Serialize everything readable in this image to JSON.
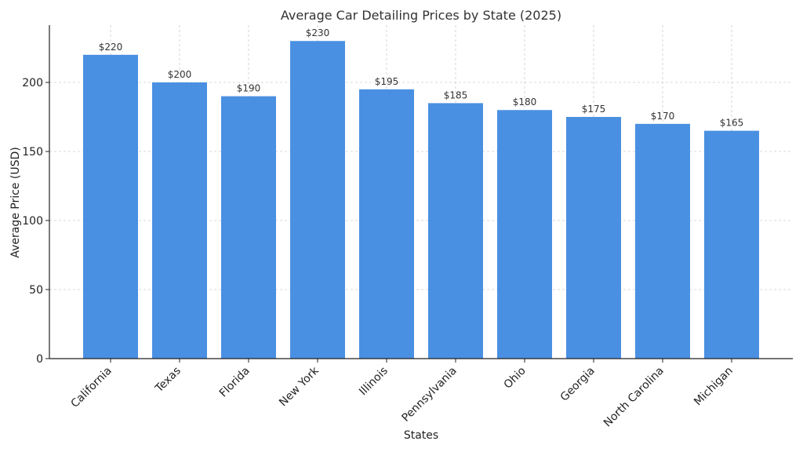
{
  "chart_data": {
    "type": "bar",
    "title": "Average Car Detailing Prices by State (2025)",
    "xlabel": "States",
    "ylabel": "Average Price (USD)",
    "categories": [
      "California",
      "Texas",
      "Florida",
      "New York",
      "Illinois",
      "Pennsylvania",
      "Ohio",
      "Georgia",
      "North Carolina",
      "Michigan"
    ],
    "values": [
      220,
      200,
      190,
      230,
      195,
      185,
      180,
      175,
      170,
      165
    ],
    "data_labels": [
      "$220",
      "$200",
      "$190",
      "$230",
      "$195",
      "$185",
      "$180",
      "$175",
      "$170",
      "$165"
    ],
    "yticks": [
      0,
      50,
      100,
      150,
      200
    ],
    "ylim": [
      0,
      241.5
    ],
    "grid": true,
    "bar_color": "#4A90E2",
    "tick_label_rotation": "45 degrees"
  }
}
